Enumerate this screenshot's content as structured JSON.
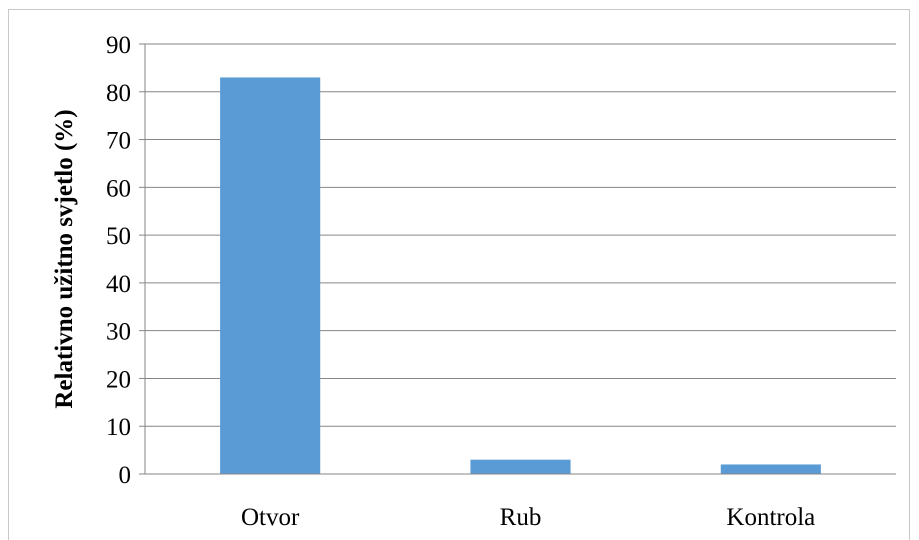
{
  "chart_data": {
    "type": "bar",
    "title": "",
    "xlabel": "",
    "ylabel": "Relativno užitno svjetlo (%)",
    "categories": [
      "Otvor",
      "Rub",
      "Kontrola"
    ],
    "values": [
      83,
      3,
      2
    ],
    "ylim": [
      0,
      90
    ],
    "yticks": [
      0,
      10,
      20,
      30,
      40,
      50,
      60,
      70,
      80,
      90
    ],
    "grid": true,
    "legend": "none",
    "colors": {
      "bar": "#5b9bd5",
      "grid": "#868686",
      "axis": "#868686",
      "frame": "#c8c8c8"
    }
  }
}
